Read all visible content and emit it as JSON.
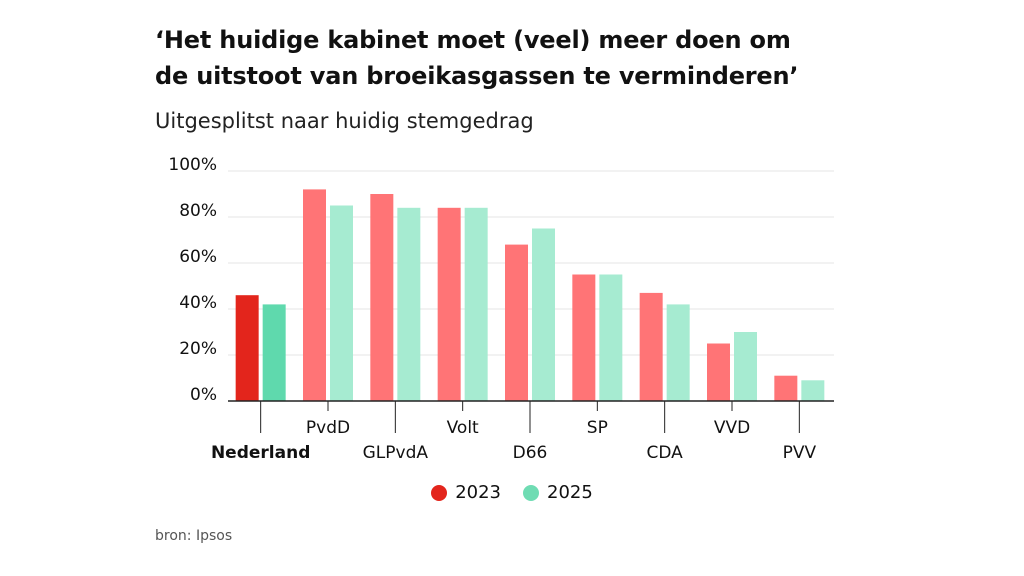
{
  "chart_data": {
    "type": "bar",
    "title_lines": [
      "‘Het huidige kabinet moet (veel) meer doen om",
      "de uitstoot van broeikasgassen te verminderen’"
    ],
    "subtitle": "Uitgesplitst naar huidig stemgedrag",
    "categories": [
      "Nederland",
      "PvdD",
      "GLPvdA",
      "Volt",
      "D66",
      "SP",
      "CDA",
      "VVD",
      "PVV"
    ],
    "highlight_category": "Nederland",
    "series": [
      {
        "name": "2023",
        "values": [
          46,
          92,
          90,
          84,
          68,
          55,
          47,
          25,
          11
        ]
      },
      {
        "name": "2025",
        "values": [
          42,
          85,
          84,
          84,
          75,
          55,
          42,
          30,
          9
        ]
      }
    ],
    "ylim": [
      0,
      100
    ],
    "yticks": [
      0,
      20,
      40,
      60,
      80,
      100
    ],
    "ytick_labels": [
      "0%",
      "20%",
      "40%",
      "60%",
      "80%",
      "100%"
    ],
    "grid": true,
    "legend_position": "bottom",
    "source": "bron: Ipsos"
  },
  "colors": {
    "highlight_2023": "#e3251c",
    "highlight_2025": "#5fd9ad",
    "party_2023": "#ff7476",
    "party_2025": "#a6ebd1",
    "legend_2023": "#e3251c",
    "legend_2025": "#6fdcb3",
    "grid": "#e4e4e4",
    "axis": "#222222"
  }
}
